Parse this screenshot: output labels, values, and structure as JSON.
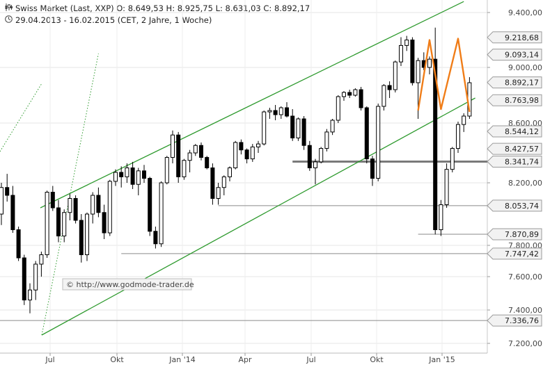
{
  "header": {
    "line1_icon": "candlestick-icon",
    "line1": "Swiss Market (Last, XXP)  O: 8.649,53  H: 8.925,75  L: 8.631,03  C: 8.892,17",
    "line2_icon": "clock-icon",
    "line2": "29.04.2013 - 16.02.2015 (CET, 2 Jahre, 1 Woche)"
  },
  "watermark": "© http://www.godmode-trader.de",
  "colors": {
    "up_fill": "#ffffff",
    "down_fill": "#000000",
    "channel": "#2e9a2e",
    "pattern": "#f07d18",
    "support": "#808080",
    "label_bg": "#f2f2f2"
  },
  "chart_data": {
    "type": "candlestick",
    "timeframe": "weekly",
    "x_ticks": [
      "Jul",
      "Okt",
      "Jan '14",
      "Apr",
      "Jul",
      "Okt",
      "Jan '15"
    ],
    "y_ticks": [
      "9.400,00",
      "9.000,00",
      "8.600,00",
      "8.200,00",
      "7.800,00",
      "7.600,00",
      "7.400,00",
      "7.200,00"
    ],
    "ylim": [
      7150,
      9450
    ],
    "level_labels": [
      {
        "value": 9218.68,
        "label": "9.218,68"
      },
      {
        "value": 9093.14,
        "label": "9.093,14"
      },
      {
        "value": 8892.17,
        "label": "8.892,17"
      },
      {
        "value": 8763.98,
        "label": "8.763,98"
      },
      {
        "value": 8544.12,
        "label": "8.544,12"
      },
      {
        "value": 8427.57,
        "label": "8.427,57"
      },
      {
        "value": 8341.74,
        "label": "8.341,74"
      },
      {
        "value": 8053.74,
        "label": "8.053,74"
      },
      {
        "value": 7870.89,
        "label": "7.870,89"
      },
      {
        "value": 7747.42,
        "label": "7.747,42"
      },
      {
        "value": 7336.76,
        "label": "7.336,76"
      }
    ],
    "ohlc": [
      [
        8000,
        8200,
        7930,
        8170
      ],
      [
        8170,
        8260,
        8080,
        8120
      ],
      [
        8120,
        8180,
        7880,
        7900
      ],
      [
        7900,
        7920,
        7700,
        7720
      ],
      [
        7720,
        7740,
        7430,
        7460
      ],
      [
        7460,
        7560,
        7380,
        7520
      ],
      [
        7520,
        7700,
        7460,
        7680
      ],
      [
        7680,
        7760,
        7600,
        7740
      ],
      [
        7740,
        8150,
        7720,
        8140
      ],
      [
        8140,
        8180,
        8020,
        8040
      ],
      [
        8040,
        8090,
        7820,
        7860
      ],
      [
        7860,
        8030,
        7820,
        8010
      ],
      [
        8010,
        8130,
        7960,
        8100
      ],
      [
        8100,
        8120,
        7940,
        7960
      ],
      [
        7960,
        8000,
        7690,
        7740
      ],
      [
        7740,
        8010,
        7700,
        8000
      ],
      [
        8000,
        8140,
        7940,
        8120
      ],
      [
        8120,
        8170,
        7980,
        8010
      ],
      [
        8010,
        8060,
        7840,
        7880
      ],
      [
        7880,
        8220,
        7860,
        8210
      ],
      [
        8210,
        8290,
        8180,
        8270
      ],
      [
        8270,
        8310,
        8170,
        8240
      ],
      [
        8240,
        8330,
        8200,
        8300
      ],
      [
        8300,
        8340,
        8160,
        8190
      ],
      [
        8190,
        8300,
        8120,
        8280
      ],
      [
        8280,
        8320,
        8200,
        8230
      ],
      [
        8230,
        8240,
        7860,
        7890
      ],
      [
        7890,
        7920,
        7780,
        7810
      ],
      [
        7810,
        8210,
        7790,
        8200
      ],
      [
        8200,
        8380,
        8190,
        8370
      ],
      [
        8370,
        8550,
        8330,
        8520
      ],
      [
        8520,
        8540,
        8200,
        8240
      ],
      [
        8240,
        8360,
        8220,
        8350
      ],
      [
        8350,
        8420,
        8270,
        8400
      ],
      [
        8400,
        8460,
        8380,
        8450
      ],
      [
        8450,
        8470,
        8350,
        8370
      ],
      [
        8370,
        8380,
        8290,
        8300
      ],
      [
        8300,
        8330,
        8060,
        8100
      ],
      [
        8100,
        8200,
        8060,
        8170
      ],
      [
        8170,
        8250,
        8120,
        8240
      ],
      [
        8240,
        8310,
        8210,
        8300
      ],
      [
        8300,
        8480,
        8290,
        8470
      ],
      [
        8470,
        8490,
        8390,
        8420
      ],
      [
        8420,
        8430,
        8330,
        8360
      ],
      [
        8360,
        8460,
        8340,
        8440
      ],
      [
        8440,
        8480,
        8400,
        8460
      ],
      [
        8460,
        8690,
        8450,
        8680
      ],
      [
        8680,
        8710,
        8630,
        8690
      ],
      [
        8690,
        8730,
        8620,
        8660
      ],
      [
        8660,
        8720,
        8630,
        8710
      ],
      [
        8710,
        8750,
        8640,
        8650
      ],
      [
        8650,
        8700,
        8480,
        8500
      ],
      [
        8500,
        8640,
        8480,
        8630
      ],
      [
        8630,
        8650,
        8420,
        8450
      ],
      [
        8450,
        8480,
        8280,
        8300
      ],
      [
        8300,
        8360,
        8190,
        8340
      ],
      [
        8340,
        8440,
        8330,
        8430
      ],
      [
        8430,
        8560,
        8410,
        8540
      ],
      [
        8540,
        8630,
        8520,
        8620
      ],
      [
        8620,
        8800,
        8600,
        8790
      ],
      [
        8790,
        8830,
        8760,
        8820
      ],
      [
        8820,
        8840,
        8780,
        8800
      ],
      [
        8800,
        8850,
        8790,
        8840
      ],
      [
        8840,
        8860,
        8690,
        8710
      ],
      [
        8710,
        8720,
        8330,
        8360
      ],
      [
        8360,
        8380,
        8180,
        8230
      ],
      [
        8230,
        8740,
        8210,
        8720
      ],
      [
        8720,
        8880,
        8690,
        8870
      ],
      [
        8870,
        8900,
        8780,
        8840
      ],
      [
        8840,
        9050,
        8820,
        9040
      ],
      [
        9040,
        9220,
        9010,
        9160
      ],
      [
        9160,
        9230,
        9120,
        9200
      ],
      [
        9200,
        9220,
        8870,
        8890
      ],
      [
        8890,
        9070,
        8630,
        9050
      ],
      [
        9050,
        9110,
        8980,
        9000
      ],
      [
        9000,
        9080,
        8950,
        9060
      ],
      [
        9060,
        9290,
        7870,
        7900
      ],
      [
        7900,
        8090,
        7860,
        8060
      ],
      [
        8060,
        8330,
        8040,
        8290
      ],
      [
        8290,
        8440,
        8270,
        8430
      ],
      [
        8430,
        8610,
        8400,
        8590
      ],
      [
        8590,
        8670,
        8540,
        8650
      ],
      [
        8650,
        8930,
        8630,
        8890
      ]
    ],
    "channel": {
      "upper": [
        [
          0,
          8040
        ],
        [
          81,
          9480
        ]
      ],
      "lower": [
        [
          0,
          7250
        ],
        [
          83,
          8780
        ]
      ],
      "dotted": [
        [
          0,
          7250
        ],
        [
          17,
          9100
        ]
      ]
    },
    "pattern": [
      [
        73,
        8690
      ],
      [
        75,
        9200
      ],
      [
        77,
        8700
      ],
      [
        80,
        9210
      ],
      [
        82,
        8680
      ]
    ],
    "support_lines": [
      {
        "value": 8341.74,
        "from": 51,
        "thick": true
      },
      {
        "value": 8053.74,
        "from": 38
      },
      {
        "value": 7870.89,
        "from": 73
      },
      {
        "value": 7747.42,
        "from": 21
      },
      {
        "value": 7336.76,
        "from": 0
      }
    ]
  }
}
